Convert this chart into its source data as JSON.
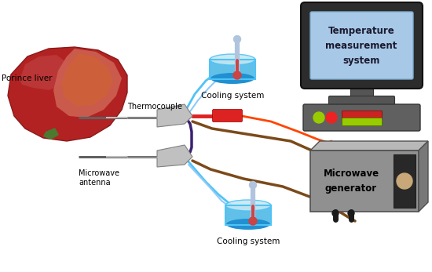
{
  "bg_color": "#ffffff",
  "labels": {
    "porince_liver": "Porince liver",
    "thermocouple": "Thermocouple",
    "microwave_antenna": "Microwave\nantenna",
    "cooling_system_top": "Cooling system",
    "cooling_system_bottom": "Cooling system",
    "temp_system": "Temperature\nmeasurement\nsystem",
    "microwave_gen": "Microwave\ngenerator"
  },
  "liver_mid": "#B22222",
  "liver_dark": "#8B1A1A",
  "liver_light": "#CD5C5C",
  "liver_highlight": "#D2691E",
  "liver_peach": "#E8A080",
  "liver_green": "#4A7A30",
  "connector_gray": "#C0C0C0",
  "connector_dark": "#808080",
  "blue_line": "#4FC3F7",
  "blue_line2": "#90CAF9",
  "brown_line": "#7B4A1A",
  "red_line": "#FF4500",
  "purple_line": "#3A2070",
  "thermocouple_red": "#DD2222",
  "monitor_frame": "#2C2C2C",
  "monitor_screen": "#A8C8E8",
  "monitor_base": "#555555",
  "generator_body": "#909090",
  "generator_body2": "#A8A8A8",
  "generator_dark": "#282828",
  "cooling_water": "#2090D0",
  "cooling_water_light": "#60C0E8",
  "cooling_rim": "#A0D8E8",
  "thermometer_body": "#B0C4DE",
  "thermometer_liquid": "#CC4444",
  "light_green": "#99CC00",
  "light_yellow": "#DDCC00",
  "light_red": "#EE2222",
  "knob_color": "#C8A878",
  "needle_dark": "#606060",
  "needle_light": "#D0D0D0"
}
